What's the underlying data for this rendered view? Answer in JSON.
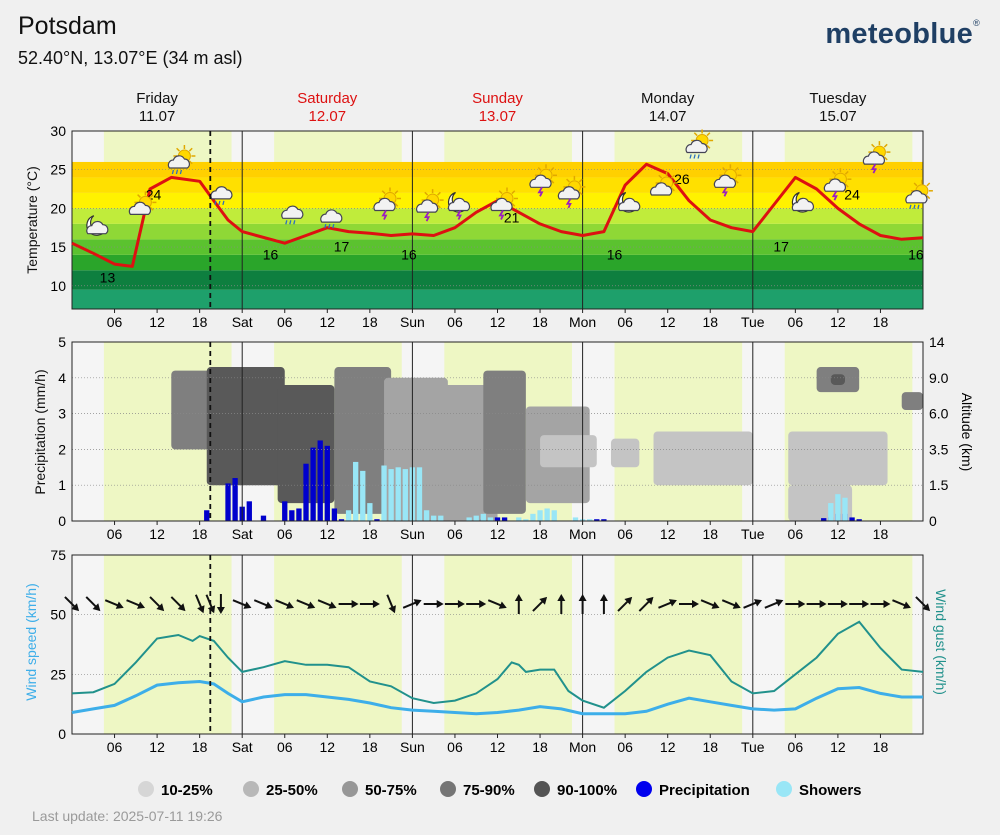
{
  "header": {
    "title": "Potsdam",
    "coords": "52.40°N, 13.07°E (34 m asl)",
    "logo": "meteoblue",
    "logo_mark": "®"
  },
  "footer": {
    "last_update": "Last update: 2025-07-11 19:26"
  },
  "days": [
    {
      "name": "Friday",
      "date": "11.07",
      "weekend": false
    },
    {
      "name": "Saturday",
      "date": "12.07",
      "weekend": true
    },
    {
      "name": "Sunday",
      "date": "13.07",
      "weekend": true
    },
    {
      "name": "Monday",
      "date": "14.07",
      "weekend": false
    },
    {
      "name": "Tuesday",
      "date": "15.07",
      "weekend": false
    }
  ],
  "x_ticks": [
    "06",
    "12",
    "18",
    "Sat",
    "06",
    "12",
    "18",
    "Sun",
    "06",
    "12",
    "18",
    "Mon",
    "06",
    "12",
    "18",
    "Tue",
    "06",
    "12",
    "18"
  ],
  "colors": {
    "temp_line": "#dd1111",
    "precip": "#0000cc",
    "showers": "#99e6f6",
    "wind_speed": "#3daee9",
    "wind_gust": "#21918c",
    "weekend": "#dd1111"
  },
  "chart_data": [
    {
      "type": "line",
      "name": "temperature",
      "ylabel": "Temperature (°C)",
      "ylim": [
        7,
        30
      ],
      "yticks": [
        10,
        15,
        20,
        25,
        30
      ],
      "x_unit": "hours since Friday 00:00",
      "x": [
        0,
        3,
        6,
        8.5,
        11,
        14,
        18,
        20,
        22,
        24,
        26,
        28,
        30,
        33,
        36,
        39,
        42,
        45,
        48,
        51,
        54,
        57,
        60,
        63,
        66,
        69,
        72,
        75,
        78,
        81,
        84,
        87,
        90,
        93,
        96,
        99,
        102,
        105,
        108,
        111,
        114,
        117,
        120
      ],
      "values": [
        15.5,
        14.2,
        12.8,
        12.5,
        22.5,
        24,
        23.5,
        21,
        18.5,
        17,
        16.5,
        16,
        15.5,
        16.5,
        17.5,
        17,
        16.8,
        16.5,
        16.7,
        16.5,
        17.5,
        19.5,
        21,
        19.5,
        18,
        17,
        16.5,
        17,
        23,
        25.7,
        24.5,
        21,
        18.5,
        17.5,
        17,
        20.5,
        24,
        22.5,
        20,
        18,
        16.5,
        16,
        16.2
      ],
      "labels": [
        {
          "x": 5,
          "value": "13"
        },
        {
          "x": 11.5,
          "value": "24"
        },
        {
          "x": 28,
          "value": "16"
        },
        {
          "x": 38,
          "value": "17"
        },
        {
          "x": 47.5,
          "value": "16"
        },
        {
          "x": 62,
          "value": "21"
        },
        {
          "x": 76.5,
          "value": "16"
        },
        {
          "x": 86,
          "value": "26"
        },
        {
          "x": 100,
          "value": "17"
        },
        {
          "x": 110,
          "value": "24"
        },
        {
          "x": 119,
          "value": "16"
        }
      ],
      "icons": [
        {
          "x": 3.5,
          "value": 17.5,
          "icon": "moon-cloud-icon"
        },
        {
          "x": 9.5,
          "value": 20,
          "icon": "sun-cloud-icon"
        },
        {
          "x": 15,
          "value": 26,
          "icon": "sun-rain-cloud-icon"
        },
        {
          "x": 21,
          "value": 22,
          "icon": "rain-cloud-icon"
        },
        {
          "x": 31,
          "value": 19.5,
          "icon": "rain-cloud-icon"
        },
        {
          "x": 36.5,
          "value": 19,
          "icon": "rain-cloud-icon"
        },
        {
          "x": 44,
          "value": 20.5,
          "icon": "sun-thunder-icon"
        },
        {
          "x": 50,
          "value": 20.3,
          "icon": "sun-thunder-icon"
        },
        {
          "x": 54.5,
          "value": 20.5,
          "icon": "moon-thunder-icon"
        },
        {
          "x": 60.5,
          "value": 20.5,
          "icon": "sun-thunder-icon"
        },
        {
          "x": 66,
          "value": 23.5,
          "icon": "sun-thunder-icon"
        },
        {
          "x": 70,
          "value": 22,
          "icon": "sun-thunder-icon"
        },
        {
          "x": 78.5,
          "value": 20.5,
          "icon": "moon-cloud-icon"
        },
        {
          "x": 83,
          "value": 22.5,
          "icon": "sun-cloud-icon"
        },
        {
          "x": 88,
          "value": 28,
          "icon": "sun-rain-cloud-icon"
        },
        {
          "x": 92,
          "value": 23.5,
          "icon": "sun-thunder-icon"
        },
        {
          "x": 103,
          "value": 20.5,
          "icon": "moon-cloud-icon"
        },
        {
          "x": 107.5,
          "value": 23,
          "icon": "sun-thunder-icon"
        },
        {
          "x": 113,
          "value": 26.5,
          "icon": "sun-thunder-icon"
        },
        {
          "x": 119,
          "value": 21.5,
          "icon": "sun-rain-cloud-icon"
        }
      ]
    },
    {
      "type": "bar",
      "name": "precipitation",
      "ylabel": "Precipitation (mm/h)",
      "ylabel_right": "Altitude (km)",
      "ylim": [
        0,
        5
      ],
      "yticks": [
        0,
        1,
        2,
        3,
        4,
        5
      ],
      "right_ticks": [
        "0",
        "1.5",
        "3.5",
        "6.0",
        "9.0",
        "14"
      ],
      "series": [
        {
          "name": "Precipitation",
          "x": [
            19,
            22,
            23,
            24,
            25,
            27,
            30,
            31,
            32,
            33,
            34,
            35,
            36,
            37,
            38,
            43,
            58,
            60,
            61,
            74,
            75,
            106,
            107,
            108,
            109,
            110,
            111
          ],
          "values": [
            0.3,
            1.05,
            1.2,
            0.4,
            0.55,
            0.15,
            0.55,
            0.3,
            0.35,
            1.6,
            2.05,
            2.25,
            2.1,
            0.35,
            0.05,
            0.05,
            0.05,
            0.1,
            0.1,
            0.05,
            0.05,
            0.08,
            0.1,
            0.2,
            0.2,
            0.1,
            0.05
          ]
        },
        {
          "name": "Showers",
          "x": [
            39,
            40,
            41,
            42,
            44,
            45,
            46,
            47,
            48,
            49,
            50,
            51,
            52,
            56,
            57,
            58,
            59,
            63,
            64,
            65,
            66,
            67,
            68,
            71,
            72,
            73,
            107,
            108,
            109
          ],
          "values": [
            0.3,
            1.65,
            1.4,
            0.5,
            1.55,
            1.45,
            1.5,
            1.45,
            1.5,
            1.5,
            0.3,
            0.15,
            0.15,
            0.1,
            0.15,
            0.2,
            0.1,
            0.1,
            0.05,
            0.2,
            0.3,
            0.35,
            0.3,
            0.1,
            0.05,
            0.05,
            0.5,
            0.75,
            0.65
          ]
        }
      ],
      "cloud_legend": [
        "10-25%",
        "25-50%",
        "50-75%",
        "75-90%",
        "90-100%"
      ],
      "cloud_blocks": [
        {
          "x": [
            14,
            28
          ],
          "y": [
            2,
            4.2
          ],
          "level": 3
        },
        {
          "x": [
            19,
            30
          ],
          "y": [
            1,
            4.3
          ],
          "level": 4
        },
        {
          "x": [
            29,
            37
          ],
          "y": [
            0.5,
            3.8
          ],
          "level": 4
        },
        {
          "x": [
            37,
            45
          ],
          "y": [
            0.2,
            4.3
          ],
          "level": 3
        },
        {
          "x": [
            44,
            53
          ],
          "y": [
            0,
            4
          ],
          "level": 2
        },
        {
          "x": [
            52,
            60
          ],
          "y": [
            0,
            3.8
          ],
          "level": 2
        },
        {
          "x": [
            58,
            64
          ],
          "y": [
            0.2,
            4.2
          ],
          "level": 3
        },
        {
          "x": [
            64,
            73
          ],
          "y": [
            0.5,
            3.2
          ],
          "level": 2
        },
        {
          "x": [
            66,
            74
          ],
          "y": [
            1.5,
            2.4
          ],
          "level": 1
        },
        {
          "x": [
            76,
            80
          ],
          "y": [
            1.5,
            2.3
          ],
          "level": 1
        },
        {
          "x": [
            82,
            96
          ],
          "y": [
            1,
            2.5
          ],
          "level": 1
        },
        {
          "x": [
            101,
            115
          ],
          "y": [
            1,
            2.5
          ],
          "level": 1
        },
        {
          "x": [
            101,
            110
          ],
          "y": [
            0,
            1
          ],
          "level": 1
        },
        {
          "x": [
            105,
            111
          ],
          "y": [
            3.6,
            4.3
          ],
          "level": 3
        },
        {
          "x": [
            107,
            109
          ],
          "y": [
            3.8,
            4.1
          ],
          "level": 4
        },
        {
          "x": [
            117,
            120
          ],
          "y": [
            3.1,
            3.6
          ],
          "level": 3
        }
      ]
    },
    {
      "type": "line",
      "name": "wind",
      "ylabel": "Wind speed (km/h)",
      "ylabel_right": "Wind gust (km/h)",
      "ylim": [
        0,
        75
      ],
      "yticks": [
        0,
        25,
        50,
        75
      ],
      "series": [
        {
          "name": "Wind speed",
          "x": [
            0,
            3,
            6,
            9,
            12,
            15,
            18,
            20,
            22,
            24,
            27,
            30,
            33,
            36,
            39,
            42,
            45,
            48,
            51,
            54,
            57,
            60,
            63,
            66,
            69,
            72,
            75,
            78,
            81,
            84,
            87,
            90,
            93,
            96,
            99,
            102,
            105,
            108,
            111,
            114,
            117,
            120
          ],
          "values": [
            9,
            10.5,
            12,
            16,
            20.5,
            21.5,
            22,
            21,
            17,
            13.5,
            15.5,
            16.5,
            16.5,
            15.5,
            14.5,
            13,
            11,
            10,
            9.5,
            9,
            8.5,
            9,
            10,
            11.5,
            10.5,
            8.5,
            8.5,
            8.5,
            9.5,
            12.5,
            15,
            13.5,
            12,
            10.5,
            10,
            10.5,
            15,
            19,
            19.5,
            17,
            15.5,
            15.5
          ]
        },
        {
          "name": "Wind gust",
          "x": [
            0,
            3,
            6,
            9,
            12,
            15,
            17,
            18,
            20,
            22,
            24,
            27,
            30,
            33,
            36,
            39,
            42,
            45,
            48,
            51,
            54,
            57,
            60,
            62,
            63,
            64,
            66,
            68,
            70,
            72,
            75,
            78,
            81,
            84,
            87,
            90,
            93,
            96,
            99,
            102,
            105,
            108,
            111,
            114,
            117,
            120
          ],
          "values": [
            17,
            17.5,
            21,
            30,
            40,
            41.5,
            39,
            41,
            39,
            32,
            26,
            28,
            30.5,
            29,
            29,
            28,
            22,
            20,
            15,
            13,
            14,
            17,
            23,
            30,
            29,
            26,
            27,
            27,
            18,
            14,
            11,
            18,
            26,
            32,
            35,
            33,
            22,
            17,
            18,
            25,
            32,
            42,
            47,
            36,
            27,
            26
          ]
        }
      ],
      "arrows": [
        {
          "x": 0,
          "dir": "SE"
        },
        {
          "x": 3,
          "dir": "SE"
        },
        {
          "x": 6,
          "dir": "ESE"
        },
        {
          "x": 9,
          "dir": "ESE"
        },
        {
          "x": 12,
          "dir": "SE"
        },
        {
          "x": 15,
          "dir": "SE"
        },
        {
          "x": 18,
          "dir": "SSE"
        },
        {
          "x": 19.5,
          "dir": "SSE"
        },
        {
          "x": 21,
          "dir": "S"
        },
        {
          "x": 24,
          "dir": "ESE"
        },
        {
          "x": 27,
          "dir": "ESE"
        },
        {
          "x": 30,
          "dir": "ESE"
        },
        {
          "x": 33,
          "dir": "ESE"
        },
        {
          "x": 36,
          "dir": "ESE"
        },
        {
          "x": 39,
          "dir": "E"
        },
        {
          "x": 42,
          "dir": "E"
        },
        {
          "x": 45,
          "dir": "SSE"
        },
        {
          "x": 48,
          "dir": "ENE"
        },
        {
          "x": 51,
          "dir": "E"
        },
        {
          "x": 54,
          "dir": "E"
        },
        {
          "x": 57,
          "dir": "E"
        },
        {
          "x": 60,
          "dir": "ESE"
        },
        {
          "x": 63,
          "dir": "N"
        },
        {
          "x": 66,
          "dir": "NE"
        },
        {
          "x": 69,
          "dir": "N"
        },
        {
          "x": 72,
          "dir": "N"
        },
        {
          "x": 75,
          "dir": "N"
        },
        {
          "x": 78,
          "dir": "NE"
        },
        {
          "x": 81,
          "dir": "NE"
        },
        {
          "x": 84,
          "dir": "ENE"
        },
        {
          "x": 87,
          "dir": "E"
        },
        {
          "x": 90,
          "dir": "ESE"
        },
        {
          "x": 93,
          "dir": "ESE"
        },
        {
          "x": 96,
          "dir": "ENE"
        },
        {
          "x": 99,
          "dir": "ENE"
        },
        {
          "x": 102,
          "dir": "E"
        },
        {
          "x": 105,
          "dir": "E"
        },
        {
          "x": 108,
          "dir": "E"
        },
        {
          "x": 111,
          "dir": "E"
        },
        {
          "x": 114,
          "dir": "E"
        },
        {
          "x": 117,
          "dir": "ESE"
        },
        {
          "x": 120,
          "dir": "SE"
        }
      ]
    }
  ],
  "legend": [
    {
      "label": "10-25%",
      "color": "#d6d6d6"
    },
    {
      "label": "25-50%",
      "color": "#b8b8b8"
    },
    {
      "label": "50-75%",
      "color": "#979797"
    },
    {
      "label": "75-90%",
      "color": "#757575"
    },
    {
      "label": "90-100%",
      "color": "#545454"
    },
    {
      "label": "Precipitation",
      "color": "#0000ee"
    },
    {
      "label": "Showers",
      "color": "#99e6f6"
    }
  ],
  "now_marker_hour": 19.5
}
